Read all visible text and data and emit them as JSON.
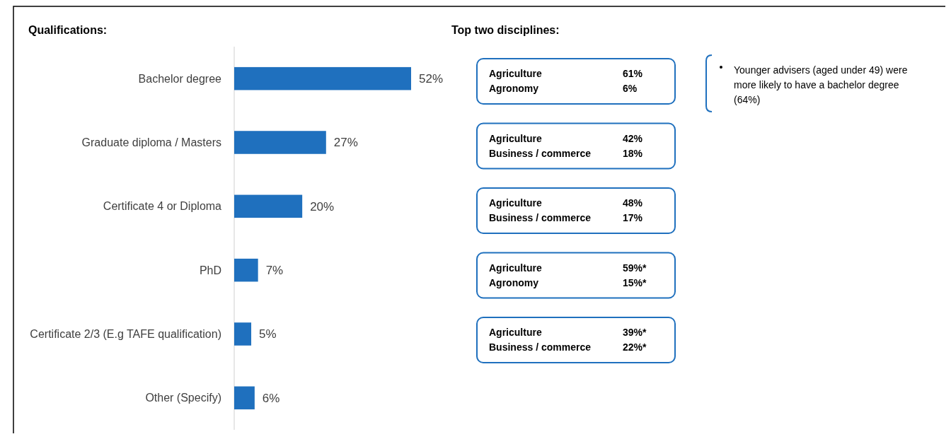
{
  "chart_data": [
    {
      "type": "bar",
      "orientation": "horizontal",
      "title": "Qualifications:",
      "categories": [
        "Bachelor degree",
        "Graduate diploma / Masters",
        "Certificate 4 or Diploma",
        "PhD",
        "Certificate 2/3 (E.g TAFE qualification)",
        "Other (Specify)"
      ],
      "values": [
        52,
        27,
        20,
        7,
        5,
        6
      ],
      "value_labels": [
        "52%",
        "27%",
        "20%",
        "7%",
        "5%",
        "6%"
      ],
      "color": "#1f70be"
    },
    {
      "type": "other",
      "title": "Top two disciplines:",
      "annotations": [
        "Agriculture",
        "61%",
        "Agronomy",
        "6%",
        "Agriculture",
        "42%",
        "Business / commerce",
        "18%",
        "Agriculture",
        "48%",
        "Business / commerce",
        "17%",
        "Agriculture",
        "59%*",
        "Agronomy",
        "15%*",
        "Agriculture",
        "39%*",
        "Business / commerce",
        "22%*"
      ]
    },
    {
      "type": "other",
      "annotations": [
        "Younger advisers (aged under 49) were more likely to have a bachelor degree (64%)"
      ]
    }
  ]
}
